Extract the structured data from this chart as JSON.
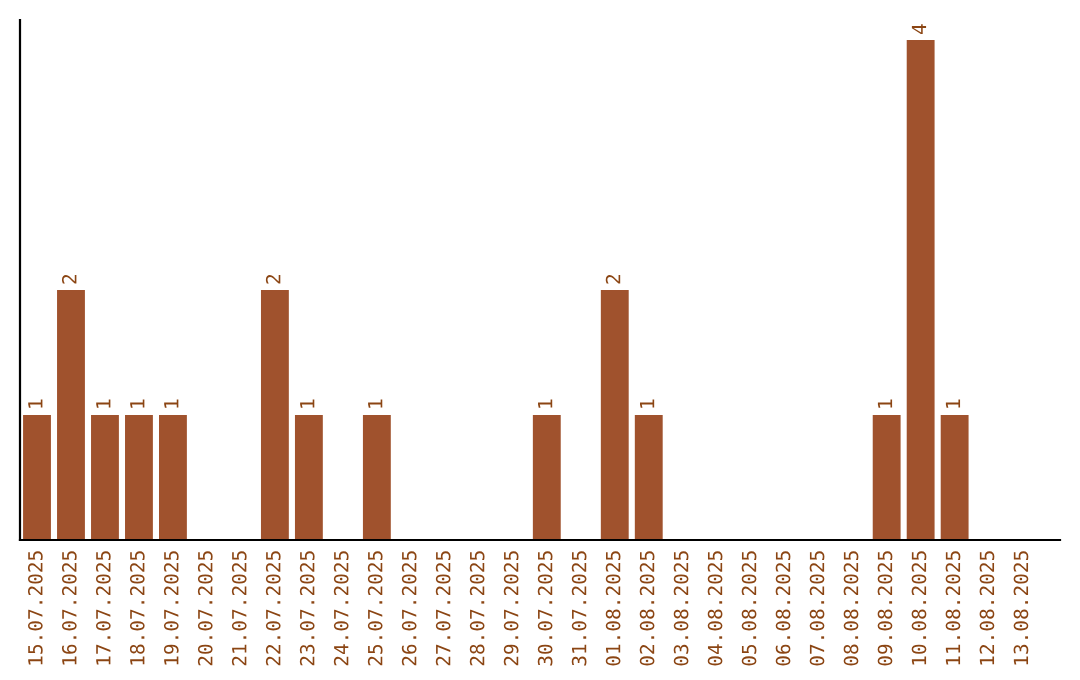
{
  "chart_data": {
    "type": "bar",
    "categories": [
      "15.07.2025",
      "16.07.2025",
      "17.07.2025",
      "18.07.2025",
      "19.07.2025",
      "20.07.2025",
      "21.07.2025",
      "22.07.2025",
      "23.07.2025",
      "24.07.2025",
      "25.07.2025",
      "26.07.2025",
      "27.07.2025",
      "28.07.2025",
      "29.07.2025",
      "30.07.2025",
      "31.07.2025",
      "01.08.2025",
      "02.08.2025",
      "03.08.2025",
      "04.08.2025",
      "05.08.2025",
      "06.08.2025",
      "07.08.2025",
      "08.08.2025",
      "09.08.2025",
      "10.08.2025",
      "11.08.2025",
      "12.08.2025",
      "13.08.2025"
    ],
    "values": [
      1,
      2,
      1,
      1,
      1,
      0,
      0,
      2,
      1,
      0,
      1,
      0,
      0,
      0,
      0,
      1,
      0,
      2,
      1,
      0,
      0,
      0,
      0,
      0,
      0,
      1,
      4,
      1,
      0,
      0
    ],
    "value_labels": [
      "1",
      "2",
      "1",
      "1",
      "1",
      null,
      null,
      "2",
      "1",
      null,
      "1",
      null,
      null,
      null,
      null,
      "1",
      null,
      "2",
      "1",
      null,
      null,
      null,
      null,
      null,
      null,
      "1",
      "4",
      "1",
      null,
      null
    ],
    "color": "#a0522d",
    "ylim": [
      0,
      4.16
    ],
    "tick_labels": "x",
    "grid": false,
    "legend": false
  }
}
